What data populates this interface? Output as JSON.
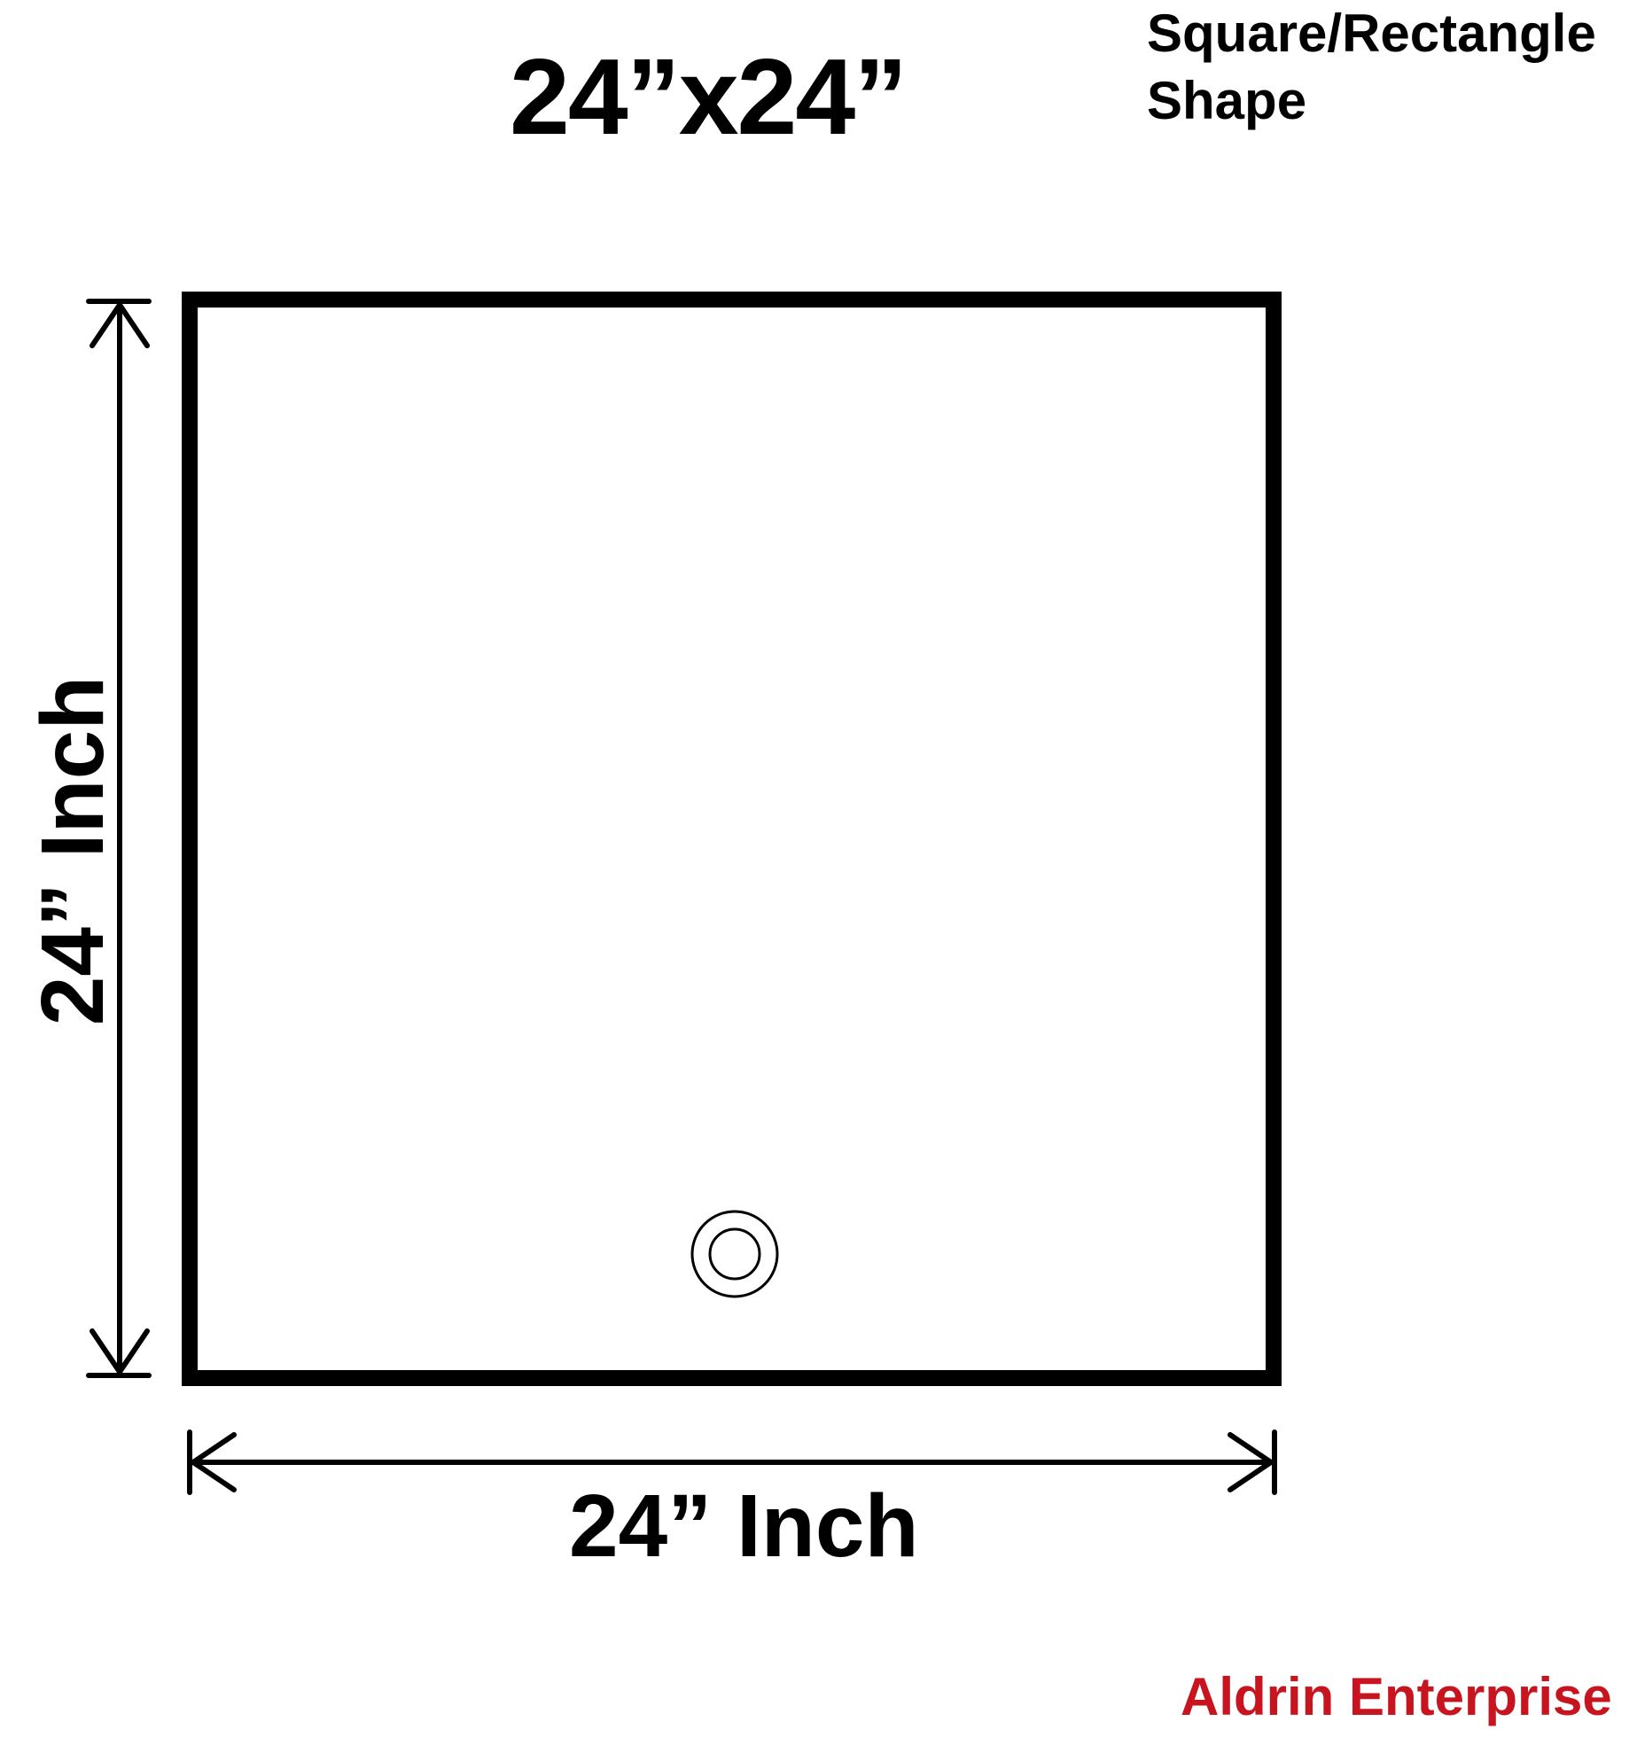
{
  "title": "24”x24”",
  "shape_note": {
    "line1": "Square/Rectangle",
    "line2": "Shape"
  },
  "dimensions": {
    "width_label": "24” Inch",
    "height_label": "24” Inch"
  },
  "brand": {
    "name": "Aldrin Enterprise",
    "color": "#c8141e"
  },
  "colors": {
    "outline": "#000000",
    "background": "#ffffff"
  },
  "icons": {
    "grommet": "grommet-ring-icon",
    "horizontal_arrow": "double-arrow-horizontal-icon",
    "vertical_arrow": "double-arrow-vertical-icon"
  }
}
